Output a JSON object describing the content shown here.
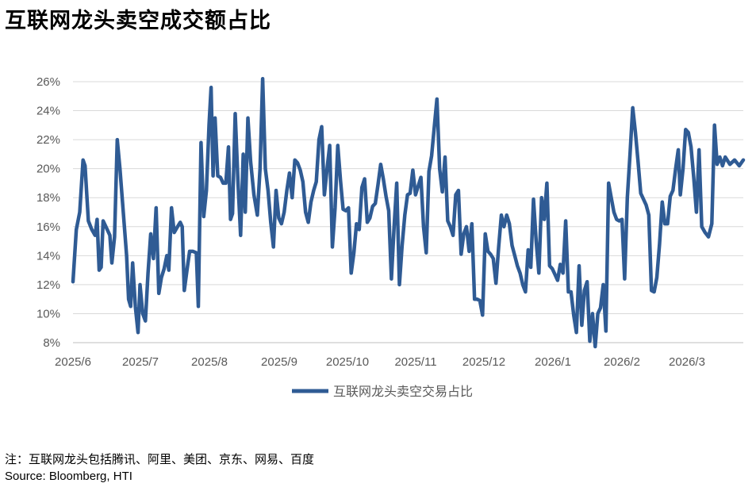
{
  "title": "互联网龙头卖空成交额占比",
  "note": "注：互联网龙头包括腾讯、阿里、美团、京东、网易、百度",
  "source": "Source: Bloomberg, HTI",
  "colors": {
    "line": "#2f5b94",
    "grid": "#d9d9d9",
    "axis_text": "#595959"
  },
  "chart_data": {
    "type": "line",
    "title": "互联网龙头卖空成交额占比",
    "xlabel": "",
    "ylabel": "",
    "ylim": [
      8,
      26
    ],
    "yticks": [
      "8%",
      "10%",
      "12%",
      "14%",
      "16%",
      "18%",
      "20%",
      "22%",
      "24%",
      "26%"
    ],
    "x_tick_labels": [
      "2025/6",
      "2025/7",
      "2025/8",
      "2025/9",
      "2025/10",
      "2025/11",
      "2025/12",
      "2026/1",
      "2026/2",
      "2026/3"
    ],
    "grid": true,
    "legend_position": "bottom-center",
    "series": [
      {
        "name": "互联网龙头卖空交易占比",
        "points": [
          [
            0.0,
            12.2
          ],
          [
            0.005,
            15.8
          ],
          [
            0.01,
            17.0
          ],
          [
            0.015,
            20.6
          ],
          [
            0.018,
            20.2
          ],
          [
            0.023,
            16.4
          ],
          [
            0.028,
            15.8
          ],
          [
            0.033,
            15.4
          ],
          [
            0.036,
            16.5
          ],
          [
            0.039,
            13.0
          ],
          [
            0.042,
            13.2
          ],
          [
            0.045,
            16.4
          ],
          [
            0.05,
            15.9
          ],
          [
            0.055,
            15.4
          ],
          [
            0.058,
            13.5
          ],
          [
            0.062,
            15.3
          ],
          [
            0.066,
            22.0
          ],
          [
            0.07,
            20.0
          ],
          [
            0.075,
            17.0
          ],
          [
            0.08,
            14.0
          ],
          [
            0.083,
            11.0
          ],
          [
            0.086,
            10.5
          ],
          [
            0.089,
            13.5
          ],
          [
            0.093,
            10.5
          ],
          [
            0.097,
            8.7
          ],
          [
            0.1,
            12.0
          ],
          [
            0.104,
            10.0
          ],
          [
            0.108,
            9.5
          ],
          [
            0.112,
            12.8
          ],
          [
            0.116,
            15.5
          ],
          [
            0.12,
            13.8
          ],
          [
            0.124,
            17.3
          ],
          [
            0.128,
            11.4
          ],
          [
            0.132,
            12.5
          ],
          [
            0.136,
            13.1
          ],
          [
            0.14,
            14.0
          ],
          [
            0.143,
            13.0
          ],
          [
            0.147,
            17.3
          ],
          [
            0.151,
            15.6
          ],
          [
            0.156,
            16.0
          ],
          [
            0.16,
            16.3
          ],
          [
            0.163,
            16.0
          ],
          [
            0.166,
            11.6
          ],
          [
            0.17,
            13.0
          ],
          [
            0.174,
            14.3
          ],
          [
            0.179,
            14.3
          ],
          [
            0.184,
            14.2
          ],
          [
            0.187,
            10.5
          ],
          [
            0.191,
            21.8
          ],
          [
            0.195,
            16.7
          ],
          [
            0.199,
            18.5
          ],
          [
            0.203,
            23.0
          ],
          [
            0.206,
            25.6
          ],
          [
            0.209,
            19.5
          ],
          [
            0.212,
            23.5
          ],
          [
            0.216,
            19.5
          ],
          [
            0.22,
            19.4
          ],
          [
            0.224,
            19.0
          ],
          [
            0.228,
            19.0
          ],
          [
            0.232,
            21.5
          ],
          [
            0.235,
            16.5
          ],
          [
            0.238,
            16.9
          ],
          [
            0.242,
            23.8
          ],
          [
            0.246,
            19.2
          ],
          [
            0.25,
            15.4
          ],
          [
            0.254,
            21.0
          ],
          [
            0.257,
            17.0
          ],
          [
            0.261,
            23.5
          ],
          [
            0.265,
            20.5
          ],
          [
            0.27,
            18.2
          ],
          [
            0.275,
            16.8
          ],
          [
            0.279,
            20.0
          ],
          [
            0.283,
            26.2
          ],
          [
            0.287,
            20.0
          ],
          [
            0.291,
            18.5
          ],
          [
            0.295,
            16.3
          ],
          [
            0.299,
            14.6
          ],
          [
            0.303,
            18.5
          ],
          [
            0.307,
            16.6
          ],
          [
            0.311,
            16.2
          ],
          [
            0.315,
            17.0
          ],
          [
            0.319,
            18.5
          ],
          [
            0.323,
            19.7
          ],
          [
            0.327,
            18.0
          ],
          [
            0.331,
            20.6
          ],
          [
            0.335,
            20.4
          ],
          [
            0.339,
            19.9
          ],
          [
            0.343,
            19.1
          ],
          [
            0.347,
            17.0
          ],
          [
            0.351,
            16.3
          ],
          [
            0.355,
            17.7
          ],
          [
            0.359,
            18.5
          ],
          [
            0.363,
            19.1
          ],
          [
            0.367,
            22.0
          ],
          [
            0.371,
            22.9
          ],
          [
            0.375,
            18.2
          ],
          [
            0.379,
            20.0
          ],
          [
            0.383,
            21.6
          ],
          [
            0.387,
            14.6
          ],
          [
            0.391,
            17.3
          ],
          [
            0.395,
            21.6
          ],
          [
            0.399,
            19.2
          ],
          [
            0.403,
            17.2
          ],
          [
            0.407,
            17.1
          ],
          [
            0.411,
            17.3
          ],
          [
            0.415,
            12.8
          ],
          [
            0.419,
            14.2
          ],
          [
            0.423,
            16.2
          ],
          [
            0.427,
            15.8
          ],
          [
            0.431,
            18.7
          ],
          [
            0.435,
            19.3
          ],
          [
            0.439,
            16.3
          ],
          [
            0.443,
            16.6
          ],
          [
            0.447,
            17.4
          ],
          [
            0.451,
            17.6
          ],
          [
            0.455,
            18.9
          ],
          [
            0.459,
            20.3
          ],
          [
            0.463,
            19.3
          ],
          [
            0.467,
            18.1
          ],
          [
            0.471,
            17.1
          ],
          [
            0.475,
            12.4
          ],
          [
            0.479,
            16.0
          ],
          [
            0.483,
            19.0
          ],
          [
            0.487,
            12.0
          ],
          [
            0.491,
            14.7
          ],
          [
            0.495,
            16.8
          ],
          [
            0.499,
            18.2
          ],
          [
            0.503,
            18.3
          ],
          [
            0.507,
            19.9
          ],
          [
            0.511,
            18.2
          ],
          [
            0.515,
            18.8
          ],
          [
            0.519,
            19.4
          ],
          [
            0.523,
            16.0
          ],
          [
            0.527,
            14.2
          ],
          [
            0.531,
            19.8
          ],
          [
            0.535,
            20.9
          ],
          [
            0.539,
            22.9
          ],
          [
            0.543,
            24.8
          ],
          [
            0.547,
            20.0
          ],
          [
            0.551,
            18.4
          ],
          [
            0.555,
            20.8
          ],
          [
            0.559,
            16.4
          ],
          [
            0.563,
            16.0
          ],
          [
            0.567,
            15.4
          ],
          [
            0.571,
            18.2
          ],
          [
            0.575,
            18.5
          ],
          [
            0.579,
            14.1
          ],
          [
            0.583,
            15.5
          ],
          [
            0.587,
            16.0
          ],
          [
            0.591,
            14.3
          ],
          [
            0.595,
            16.2
          ],
          [
            0.599,
            11.0
          ],
          [
            0.603,
            11.0
          ],
          [
            0.607,
            10.9
          ],
          [
            0.611,
            9.9
          ],
          [
            0.615,
            15.5
          ],
          [
            0.619,
            14.3
          ],
          [
            0.623,
            14.1
          ],
          [
            0.627,
            13.8
          ],
          [
            0.631,
            12.1
          ],
          [
            0.635,
            14.6
          ],
          [
            0.639,
            16.8
          ],
          [
            0.643,
            16.0
          ],
          [
            0.647,
            16.8
          ],
          [
            0.651,
            16.2
          ],
          [
            0.655,
            14.7
          ],
          [
            0.659,
            14.0
          ],
          [
            0.663,
            13.3
          ],
          [
            0.667,
            12.8
          ],
          [
            0.671,
            12.0
          ],
          [
            0.675,
            11.5
          ],
          [
            0.679,
            14.4
          ],
          [
            0.683,
            13.2
          ],
          [
            0.687,
            17.9
          ],
          [
            0.691,
            15.0
          ],
          [
            0.695,
            12.8
          ],
          [
            0.699,
            18.0
          ],
          [
            0.703,
            16.5
          ],
          [
            0.707,
            19.0
          ],
          [
            0.711,
            13.3
          ],
          [
            0.715,
            13.1
          ],
          [
            0.719,
            12.7
          ],
          [
            0.723,
            12.3
          ],
          [
            0.727,
            13.4
          ],
          [
            0.731,
            12.8
          ],
          [
            0.735,
            16.4
          ],
          [
            0.739,
            11.5
          ],
          [
            0.743,
            11.5
          ],
          [
            0.747,
            9.9
          ],
          [
            0.751,
            8.7
          ],
          [
            0.755,
            13.3
          ],
          [
            0.759,
            9.2
          ],
          [
            0.763,
            11.6
          ],
          [
            0.767,
            12.2
          ],
          [
            0.771,
            8.1
          ],
          [
            0.775,
            10.0
          ],
          [
            0.779,
            7.7
          ],
          [
            0.783,
            10.0
          ],
          [
            0.787,
            10.4
          ],
          [
            0.791,
            12.0
          ],
          [
            0.795,
            8.8
          ],
          [
            0.799,
            19.0
          ],
          [
            0.803,
            18.0
          ],
          [
            0.807,
            17.0
          ],
          [
            0.811,
            16.5
          ],
          [
            0.815,
            16.4
          ],
          [
            0.819,
            16.5
          ],
          [
            0.823,
            12.4
          ],
          [
            0.827,
            18.0
          ],
          [
            0.831,
            21.0
          ],
          [
            0.835,
            24.2
          ],
          [
            0.839,
            22.5
          ],
          [
            0.843,
            20.5
          ],
          [
            0.847,
            18.3
          ],
          [
            0.851,
            17.9
          ],
          [
            0.855,
            17.5
          ],
          [
            0.859,
            16.8
          ],
          [
            0.863,
            11.6
          ],
          [
            0.867,
            11.5
          ],
          [
            0.871,
            12.5
          ],
          [
            0.875,
            14.8
          ],
          [
            0.879,
            17.7
          ],
          [
            0.883,
            16.2
          ],
          [
            0.887,
            16.2
          ],
          [
            0.891,
            18.1
          ],
          [
            0.895,
            18.5
          ],
          [
            0.899,
            20.0
          ],
          [
            0.903,
            21.3
          ],
          [
            0.906,
            18.2
          ],
          [
            0.91,
            20.0
          ],
          [
            0.914,
            22.7
          ],
          [
            0.918,
            22.5
          ],
          [
            0.922,
            21.5
          ],
          [
            0.926,
            19.4
          ],
          [
            0.93,
            17.0
          ],
          [
            0.934,
            21.3
          ],
          [
            0.938,
            16.0
          ],
          [
            0.943,
            15.6
          ],
          [
            0.948,
            15.3
          ],
          [
            0.953,
            16.2
          ],
          [
            0.957,
            23.0
          ],
          [
            0.961,
            20.3
          ],
          [
            0.965,
            20.8
          ],
          [
            0.969,
            20.2
          ],
          [
            0.973,
            20.8
          ],
          [
            0.98,
            20.3
          ],
          [
            0.987,
            20.6
          ],
          [
            0.994,
            20.2
          ],
          [
            1.0,
            20.6
          ]
        ]
      }
    ]
  }
}
